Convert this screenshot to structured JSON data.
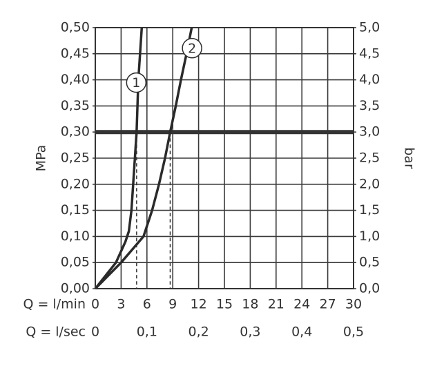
{
  "chart_data": {
    "type": "line",
    "ylabel": "MPa",
    "y2label": "bar",
    "xlabel": "Q = l/min",
    "x2label": "Q = l/sec",
    "xlim": [
      0,
      30
    ],
    "xticks": [
      0,
      3,
      6,
      9,
      12,
      15,
      18,
      21,
      24,
      27,
      30
    ],
    "x2lim": [
      0,
      0.5
    ],
    "x2ticks": [
      0,
      {
        "value": 0.1,
        "label": "0,1"
      },
      {
        "value": 0.2,
        "label": "0,2"
      },
      {
        "value": 0.3,
        "label": "0,3"
      },
      {
        "value": 0.4,
        "label": "0,4"
      },
      {
        "value": 0.5,
        "label": "0,5"
      }
    ],
    "ylim": [
      0,
      0.5
    ],
    "yticks": [
      {
        "value": 0,
        "label": "0,00"
      },
      {
        "value": 0.05,
        "label": "0,05"
      },
      {
        "value": 0.1,
        "label": "0,10"
      },
      {
        "value": 0.15,
        "label": "0,15"
      },
      {
        "value": 0.2,
        "label": "0,20"
      },
      {
        "value": 0.25,
        "label": "0,25"
      },
      {
        "value": 0.3,
        "label": "0,30"
      },
      {
        "value": 0.35,
        "label": "0,35"
      },
      {
        "value": 0.4,
        "label": "0,40"
      },
      {
        "value": 0.45,
        "label": "0,45"
      },
      {
        "value": 0.5,
        "label": "0,50"
      }
    ],
    "y2lim": [
      0,
      5
    ],
    "y2ticks": [
      {
        "value": 0,
        "label": "0,0"
      },
      {
        "value": 0.5,
        "label": "0,5"
      },
      {
        "value": 1,
        "label": "1,0"
      },
      {
        "value": 1.5,
        "label": "1,5"
      },
      {
        "value": 2,
        "label": "2,0"
      },
      {
        "value": 2.5,
        "label": "2,5"
      },
      {
        "value": 3,
        "label": "3,0"
      },
      {
        "value": 3.5,
        "label": "3,5"
      },
      {
        "value": 4,
        "label": "4,0"
      },
      {
        "value": 4.5,
        "label": "4,5"
      },
      {
        "value": 5,
        "label": "5,0"
      }
    ],
    "grid": true,
    "reference_line": 0.3,
    "reference_x": [
      4.8,
      8.7
    ],
    "series": [
      {
        "name": "1",
        "color": "#2a2a2a",
        "x": [
          0,
          2.4,
          3.5,
          3.9,
          4.2,
          4.4,
          4.6,
          4.8,
          5.0,
          5.4
        ],
        "values": [
          0,
          0.05,
          0.09,
          0.11,
          0.15,
          0.2,
          0.25,
          0.3,
          0.4,
          0.5
        ]
      },
      {
        "name": "2",
        "color": "#2a2a2a",
        "x": [
          0,
          3.0,
          5.6,
          6.6,
          7.4,
          8.1,
          8.7,
          9.35,
          9.95,
          10.6,
          11.2
        ],
        "values": [
          0,
          0.05,
          0.1,
          0.15,
          0.2,
          0.25,
          0.3,
          0.35,
          0.4,
          0.45,
          0.5
        ]
      }
    ]
  }
}
